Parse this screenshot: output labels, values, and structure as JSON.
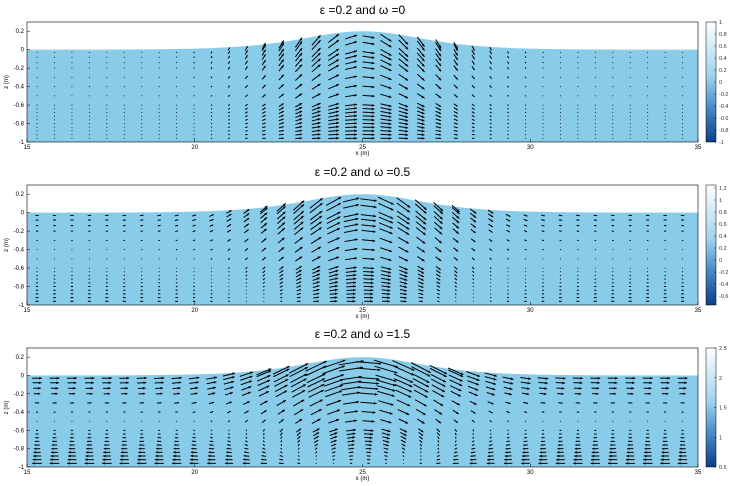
{
  "chart_data": [
    {
      "type": "quiver",
      "title": "ε =0.2 and ω =0",
      "xlabel": "x (m)",
      "ylabel": "z (m)",
      "xlim": [
        15,
        35
      ],
      "ylim": [
        -1,
        0.3
      ],
      "xticks": [
        "15",
        "20",
        "25",
        "30",
        "35"
      ],
      "yticks": [
        "0.2",
        "0",
        "-0.2",
        "-0.4",
        "-0.6",
        "-0.8",
        "-1"
      ],
      "surface": {
        "still_level": 0,
        "crest_x": 25,
        "crest_height": 0.2
      },
      "fill_color": "#89CCEA",
      "colorbar": {
        "ticks": [
          "1",
          "0.8",
          "0.6",
          "0.4",
          "0.2",
          "0",
          "-0.2",
          "-0.4",
          "-0.6",
          "-0.8",
          "-1"
        ],
        "range": [
          -1,
          1
        ]
      }
    },
    {
      "type": "quiver",
      "title": "ε =0.2 and ω =0.5",
      "xlabel": "x (m)",
      "ylabel": "z (m)",
      "xlim": [
        15,
        35
      ],
      "ylim": [
        -1,
        0.3
      ],
      "xticks": [
        "15",
        "20",
        "25",
        "30",
        "35"
      ],
      "yticks": [
        "0.2",
        "0",
        "-0.2",
        "-0.4",
        "-0.6",
        "-0.8",
        "-1"
      ],
      "surface": {
        "still_level": 0,
        "crest_x": 25,
        "crest_height": 0.2
      },
      "fill_color": "#89CCEA",
      "colorbar": {
        "ticks": [
          "1.2",
          "1",
          "0.8",
          "0.6",
          "0.4",
          "0.2",
          "0",
          "-0.2",
          "-0.4",
          "-0.6"
        ],
        "range": [
          -0.75,
          1.25
        ]
      }
    },
    {
      "type": "quiver",
      "title": "ε =0.2 and ω =1.5",
      "xlabel": "x (m)",
      "ylabel": "z (m)",
      "xlim": [
        15,
        35
      ],
      "ylim": [
        -1,
        0.3
      ],
      "xticks": [
        "15",
        "20",
        "25",
        "30",
        "35"
      ],
      "yticks": [
        "0.2",
        "0",
        "-0.2",
        "-0.4",
        "-0.6",
        "-0.8",
        "-1"
      ],
      "surface": {
        "still_level": 0,
        "crest_x": 25,
        "crest_height": 0.2
      },
      "fill_color": "#89CCEA",
      "colorbar": {
        "ticks": [
          "2.5",
          "2",
          "1.5",
          "1",
          "0.5"
        ],
        "range": [
          0.5,
          2.5
        ]
      }
    }
  ]
}
